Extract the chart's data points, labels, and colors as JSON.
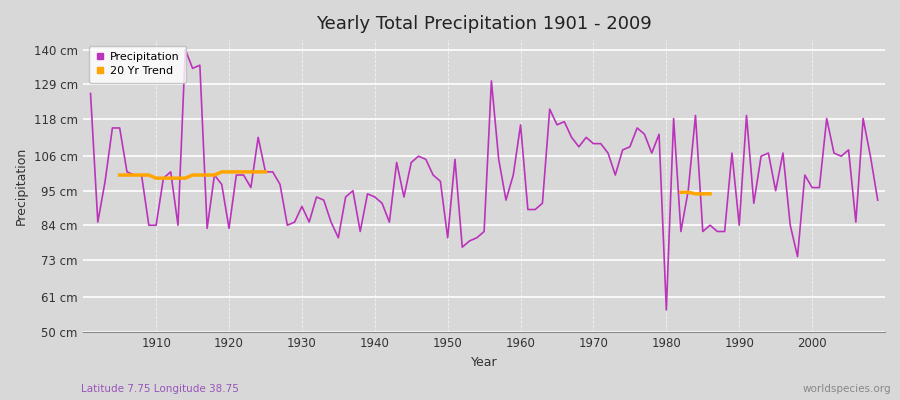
{
  "title": "Yearly Total Precipitation 1901 - 2009",
  "xlabel": "Year",
  "ylabel": "Precipitation",
  "lat_lon_label": "Latitude 7.75 Longitude 38.75",
  "source_label": "worldspecies.org",
  "bg_color": "#d8d8d8",
  "plot_bg_color": "#d8d8d8",
  "line_color": "#bb33bb",
  "trend_color": "#ffa500",
  "ylim": [
    50,
    143
  ],
  "yticks": [
    50,
    61,
    73,
    84,
    95,
    106,
    118,
    129,
    140
  ],
  "ytick_labels": [
    "50 cm",
    "61 cm",
    "73 cm",
    "84 cm",
    "95 cm",
    "106 cm",
    "118 cm",
    "129 cm",
    "140 cm"
  ],
  "years": [
    1901,
    1902,
    1903,
    1904,
    1905,
    1906,
    1907,
    1908,
    1909,
    1910,
    1911,
    1912,
    1913,
    1914,
    1915,
    1916,
    1917,
    1918,
    1919,
    1920,
    1921,
    1922,
    1923,
    1924,
    1925,
    1926,
    1927,
    1928,
    1929,
    1930,
    1931,
    1932,
    1933,
    1934,
    1935,
    1936,
    1937,
    1938,
    1939,
    1940,
    1941,
    1942,
    1943,
    1944,
    1945,
    1946,
    1947,
    1948,
    1949,
    1950,
    1951,
    1952,
    1953,
    1954,
    1955,
    1956,
    1957,
    1958,
    1959,
    1960,
    1961,
    1962,
    1963,
    1964,
    1965,
    1966,
    1967,
    1968,
    1969,
    1970,
    1971,
    1972,
    1973,
    1974,
    1975,
    1976,
    1977,
    1978,
    1979,
    1980,
    1981,
    1982,
    1983,
    1984,
    1985,
    1986,
    1987,
    1988,
    1989,
    1990,
    1991,
    1992,
    1993,
    1994,
    1995,
    1996,
    1997,
    1998,
    1999,
    2000,
    2001,
    2002,
    2003,
    2004,
    2005,
    2006,
    2007,
    2008,
    2009
  ],
  "precip": [
    126,
    85,
    98,
    115,
    115,
    101,
    100,
    100,
    84,
    84,
    99,
    101,
    84,
    140,
    134,
    135,
    83,
    100,
    97,
    83,
    100,
    100,
    96,
    112,
    101,
    101,
    97,
    84,
    85,
    90,
    85,
    93,
    92,
    85,
    80,
    93,
    95,
    82,
    94,
    93,
    91,
    85,
    104,
    93,
    104,
    106,
    105,
    100,
    98,
    80,
    105,
    77,
    79,
    80,
    82,
    130,
    105,
    92,
    100,
    116,
    89,
    89,
    91,
    121,
    116,
    117,
    112,
    109,
    112,
    110,
    110,
    107,
    100,
    108,
    109,
    115,
    113,
    107,
    113,
    57,
    118,
    82,
    95,
    119,
    82,
    84,
    82,
    82,
    107,
    84,
    119,
    91,
    106,
    107,
    95,
    107,
    84,
    74,
    100,
    96,
    96,
    118,
    107,
    106,
    108,
    85,
    118,
    106,
    92
  ],
  "trend_seg1_years": [
    1905,
    1906,
    1907,
    1908,
    1909,
    1910,
    1911,
    1912,
    1913,
    1914,
    1915,
    1916,
    1917,
    1918,
    1919,
    1920,
    1921,
    1922,
    1923,
    1924,
    1925
  ],
  "trend_seg1_vals": [
    100,
    100,
    100,
    100,
    100,
    99,
    99,
    99,
    99,
    99,
    100,
    100,
    100,
    100,
    101,
    101,
    101,
    101,
    101,
    101,
    101
  ],
  "trend_seg2_years": [
    1982,
    1983,
    1984,
    1985,
    1986
  ],
  "trend_seg2_vals": [
    94.5,
    94.5,
    94,
    94,
    94
  ]
}
